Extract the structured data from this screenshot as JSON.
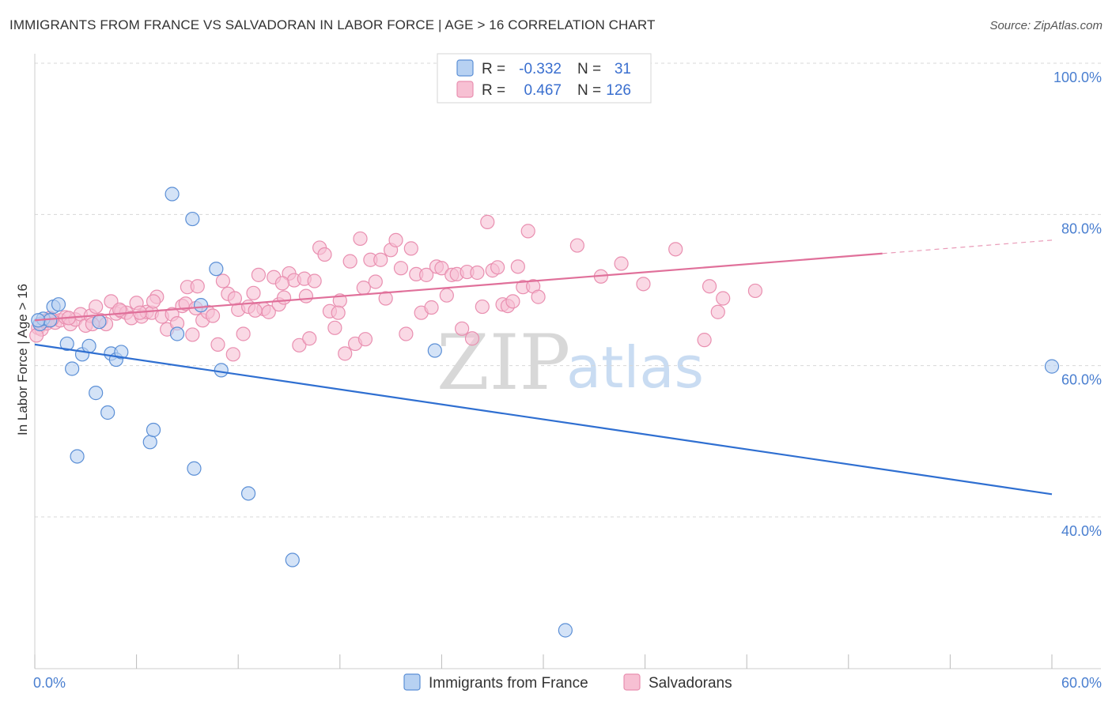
{
  "header": {
    "title": "IMMIGRANTS FROM FRANCE VS SALVADORAN IN LABOR FORCE | AGE > 16 CORRELATION CHART",
    "source": "Source: ZipAtlas.com"
  },
  "legend": {
    "rows": [
      {
        "r_label": "R =",
        "r_value": "-0.332",
        "n_label": "N =",
        "n_value": "31"
      },
      {
        "r_label": "R =",
        "r_value": "0.467",
        "n_label": "N =",
        "n_value": "126"
      }
    ]
  },
  "bottom_legend": {
    "items": [
      "Immigrants from France",
      "Salvadorans"
    ]
  },
  "watermark": {
    "zip": "ZIP",
    "atlas": "atlas"
  },
  "colors": {
    "blue_fill": "#b7d1f2",
    "blue_stroke": "#5b8fd6",
    "blue_line": "#2f6fd1",
    "pink_fill": "#f7c0d3",
    "pink_stroke": "#e98fb0",
    "pink_line": "#e0709a",
    "grid": "#d8d8d8",
    "axis_text": "#4a7fd0"
  },
  "chart_data": {
    "type": "scatter",
    "title": "IMMIGRANTS FROM FRANCE VS SALVADORAN IN LABOR FORCE | AGE > 16 CORRELATION CHART",
    "xlabel": "",
    "ylabel": "In Labor Force | Age > 16",
    "xlim": [
      0,
      60
    ],
    "ylim": [
      20,
      102
    ],
    "x_tick_labels": [
      "0.0%",
      "60.0%"
    ],
    "y_ticks": [
      40,
      60,
      80,
      100
    ],
    "y_tick_labels": [
      "40.0%",
      "60.0%",
      "80.0%",
      "100.0%"
    ],
    "grid": true,
    "series": [
      {
        "name": "Immigrants from France",
        "color": "blue",
        "trend": {
          "x": [
            0,
            60
          ],
          "y": [
            62.8,
            43.0
          ],
          "dashed_from": null
        },
        "points": [
          [
            0.3,
            65.5
          ],
          [
            0.5,
            66.2
          ],
          [
            0.9,
            66.0
          ],
          [
            1.1,
            67.8
          ],
          [
            1.4,
            68.1
          ],
          [
            1.9,
            62.9
          ],
          [
            2.2,
            59.6
          ],
          [
            2.8,
            61.5
          ],
          [
            3.2,
            62.6
          ],
          [
            3.6,
            56.4
          ],
          [
            3.8,
            65.8
          ],
          [
            4.3,
            53.8
          ],
          [
            4.5,
            61.6
          ],
          [
            4.8,
            60.8
          ],
          [
            5.1,
            61.8
          ],
          [
            2.5,
            48.0
          ],
          [
            6.8,
            49.9
          ],
          [
            7.0,
            51.5
          ],
          [
            8.1,
            82.7
          ],
          [
            8.4,
            64.2
          ],
          [
            9.3,
            79.4
          ],
          [
            9.4,
            46.4
          ],
          [
            9.8,
            68.0
          ],
          [
            10.7,
            72.8
          ],
          [
            11.0,
            59.4
          ],
          [
            12.6,
            43.1
          ],
          [
            15.2,
            34.3
          ],
          [
            23.6,
            62.0
          ],
          [
            31.3,
            25.0
          ],
          [
            60.0,
            59.9
          ],
          [
            0.2,
            66.0
          ]
        ]
      },
      {
        "name": "Salvadorans",
        "color": "pink",
        "trend": {
          "x": [
            0,
            60
          ],
          "y": [
            66.0,
            76.6
          ],
          "dashed_from": 50
        },
        "points": [
          [
            0.2,
            65.0
          ],
          [
            0.4,
            64.8
          ],
          [
            0.7,
            65.6
          ],
          [
            0.9,
            66.3
          ],
          [
            1.2,
            65.7
          ],
          [
            1.5,
            66.0
          ],
          [
            1.8,
            66.4
          ],
          [
            2.1,
            65.5
          ],
          [
            2.4,
            66.1
          ],
          [
            2.7,
            66.8
          ],
          [
            3.0,
            65.3
          ],
          [
            3.3,
            66.6
          ],
          [
            3.6,
            67.8
          ],
          [
            3.9,
            66.0
          ],
          [
            4.2,
            65.5
          ],
          [
            4.5,
            68.5
          ],
          [
            4.8,
            66.9
          ],
          [
            5.1,
            67.2
          ],
          [
            5.4,
            67.0
          ],
          [
            5.7,
            66.3
          ],
          [
            6.0,
            68.3
          ],
          [
            6.3,
            66.5
          ],
          [
            6.6,
            67.1
          ],
          [
            6.9,
            67.0
          ],
          [
            7.2,
            69.1
          ],
          [
            7.5,
            66.5
          ],
          [
            7.8,
            64.8
          ],
          [
            8.1,
            66.8
          ],
          [
            8.4,
            65.6
          ],
          [
            8.7,
            67.9
          ],
          [
            9.0,
            70.4
          ],
          [
            9.3,
            64.1
          ],
          [
            9.6,
            70.5
          ],
          [
            9.9,
            66.0
          ],
          [
            10.2,
            67.1
          ],
          [
            10.5,
            66.6
          ],
          [
            10.8,
            62.8
          ],
          [
            11.1,
            71.2
          ],
          [
            11.4,
            69.5
          ],
          [
            11.7,
            61.5
          ],
          [
            12.0,
            67.4
          ],
          [
            12.3,
            64.2
          ],
          [
            12.6,
            67.8
          ],
          [
            12.9,
            69.6
          ],
          [
            13.2,
            72.0
          ],
          [
            13.5,
            67.5
          ],
          [
            13.8,
            67.1
          ],
          [
            14.1,
            71.7
          ],
          [
            14.4,
            68.1
          ],
          [
            14.7,
            69.0
          ],
          [
            15.0,
            72.2
          ],
          [
            15.3,
            71.3
          ],
          [
            15.6,
            62.7
          ],
          [
            15.9,
            71.5
          ],
          [
            16.2,
            63.6
          ],
          [
            16.5,
            71.2
          ],
          [
            16.8,
            75.6
          ],
          [
            17.1,
            74.7
          ],
          [
            17.4,
            67.2
          ],
          [
            17.7,
            65.0
          ],
          [
            18.0,
            68.6
          ],
          [
            18.3,
            61.6
          ],
          [
            18.6,
            73.8
          ],
          [
            18.9,
            62.9
          ],
          [
            19.2,
            76.8
          ],
          [
            19.5,
            63.5
          ],
          [
            19.8,
            74.0
          ],
          [
            20.1,
            71.1
          ],
          [
            20.4,
            74.0
          ],
          [
            20.7,
            68.9
          ],
          [
            21.0,
            75.3
          ],
          [
            21.3,
            76.6
          ],
          [
            21.6,
            72.9
          ],
          [
            21.9,
            64.2
          ],
          [
            22.2,
            75.5
          ],
          [
            22.5,
            72.1
          ],
          [
            22.8,
            67.0
          ],
          [
            23.1,
            72.0
          ],
          [
            23.4,
            67.7
          ],
          [
            23.7,
            73.1
          ],
          [
            24.0,
            72.9
          ],
          [
            24.3,
            69.3
          ],
          [
            24.6,
            72.0
          ],
          [
            24.9,
            72.1
          ],
          [
            25.2,
            64.9
          ],
          [
            25.5,
            72.4
          ],
          [
            25.8,
            63.6
          ],
          [
            26.1,
            72.3
          ],
          [
            26.4,
            67.8
          ],
          [
            26.7,
            79.0
          ],
          [
            27.0,
            72.6
          ],
          [
            27.3,
            73.0
          ],
          [
            27.6,
            68.1
          ],
          [
            27.9,
            67.9
          ],
          [
            28.2,
            68.5
          ],
          [
            28.5,
            73.1
          ],
          [
            28.8,
            70.4
          ],
          [
            29.1,
            77.8
          ],
          [
            29.4,
            70.5
          ],
          [
            29.7,
            69.1
          ],
          [
            32.0,
            75.9
          ],
          [
            33.4,
            71.8
          ],
          [
            34.6,
            73.5
          ],
          [
            35.9,
            70.8
          ],
          [
            37.8,
            75.4
          ],
          [
            39.5,
            63.4
          ],
          [
            39.8,
            70.5
          ],
          [
            40.3,
            67.1
          ],
          [
            40.6,
            68.9
          ],
          [
            42.5,
            69.9
          ],
          [
            0.1,
            64.0
          ],
          [
            0.6,
            65.9
          ],
          [
            1.0,
            66.1
          ],
          [
            2.0,
            66.3
          ],
          [
            3.4,
            65.5
          ],
          [
            5.0,
            67.4
          ],
          [
            6.2,
            67.0
          ],
          [
            7.0,
            68.5
          ],
          [
            8.9,
            68.2
          ],
          [
            9.5,
            67.6
          ],
          [
            11.8,
            68.9
          ],
          [
            13.0,
            67.3
          ],
          [
            14.6,
            70.9
          ],
          [
            16.0,
            69.2
          ],
          [
            17.9,
            67.0
          ],
          [
            19.4,
            70.3
          ]
        ]
      }
    ]
  }
}
